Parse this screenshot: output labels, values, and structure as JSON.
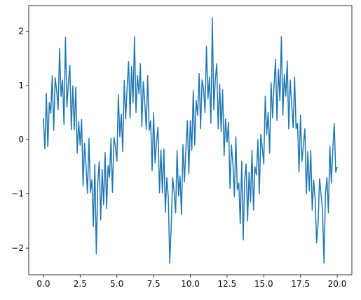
{
  "chart_data": {
    "type": "line",
    "color": "#1f77b4",
    "x": [
      0,
      0.1,
      0.2,
      0.3,
      0.4,
      0.5,
      0.6,
      0.7,
      0.8,
      0.9,
      1,
      1.1,
      1.2,
      1.3,
      1.4,
      1.5,
      1.6,
      1.7,
      1.8,
      1.9,
      2,
      2.1,
      2.2,
      2.3,
      2.4,
      2.5,
      2.6,
      2.7,
      2.8,
      2.9,
      3,
      3.1,
      3.2,
      3.3,
      3.4,
      3.5,
      3.6,
      3.7,
      3.8,
      3.9,
      4,
      4.1,
      4.2,
      4.3,
      4.4,
      4.5,
      4.6,
      4.7,
      4.8,
      4.9,
      5,
      5.1,
      5.2,
      5.3,
      5.4,
      5.5,
      5.6,
      5.7,
      5.8,
      5.9,
      6,
      6.1,
      6.2,
      6.3,
      6.4,
      6.5,
      6.6,
      6.7,
      6.8,
      6.9,
      7,
      7.1,
      7.2,
      7.3,
      7.4,
      7.5,
      7.6,
      7.7,
      7.8,
      7.9,
      8,
      8.1,
      8.2,
      8.3,
      8.4,
      8.5,
      8.6,
      8.7,
      8.8,
      8.9,
      9,
      9.1,
      9.2,
      9.3,
      9.4,
      9.5,
      9.6,
      9.7,
      9.8,
      9.9,
      10,
      10.1,
      10.2,
      10.3,
      10.4,
      10.5,
      10.6,
      10.7,
      10.8,
      10.9,
      11,
      11.1,
      11.2,
      11.3,
      11.4,
      11.5,
      11.6,
      11.7,
      11.8,
      11.9,
      12,
      12.1,
      12.2,
      12.3,
      12.4,
      12.5,
      12.6,
      12.7,
      12.8,
      12.9,
      13,
      13.1,
      13.2,
      13.3,
      13.4,
      13.5,
      13.6,
      13.7,
      13.8,
      13.9,
      14,
      14.1,
      14.2,
      14.3,
      14.4,
      14.5,
      14.6,
      14.7,
      14.8,
      14.9,
      15,
      15.1,
      15.2,
      15.3,
      15.4,
      15.5,
      15.6,
      15.7,
      15.8,
      15.9,
      16,
      16.1,
      16.2,
      16.3,
      16.4,
      16.5,
      16.6,
      16.7,
      16.8,
      16.9,
      17,
      17.1,
      17.2,
      17.3,
      17.4,
      17.5,
      17.6,
      17.7,
      17.8,
      17.9,
      18,
      18.1,
      18.2,
      18.3,
      18.4,
      18.5,
      18.6,
      18.7,
      18.8,
      18.9,
      19,
      19.1,
      19.2,
      19.3,
      19.4,
      19.5,
      19.6,
      19.7,
      19.8,
      19.9,
      20
    ],
    "values": [
      0.4,
      -0.17,
      0.85,
      -0.13,
      0.68,
      0.49,
      1.18,
      0.17,
      1.14,
      0.9,
      0.55,
      1.68,
      0.8,
      1.1,
      0.28,
      1.88,
      0.6,
      1.04,
      1.37,
      0.18,
      0.99,
      0.18,
      0.97,
      -0.25,
      0.33,
      -0.1,
      0.37,
      -0.85,
      -0.07,
      -0.48,
      -0.99,
      0.02,
      -0.97,
      -0.74,
      -1.6,
      -0.45,
      -2.1,
      -0.8,
      -0.4,
      -1.48,
      -0.55,
      -1.2,
      -0.24,
      -1.27,
      -0.48,
      -0.69,
      0.02,
      -0.97,
      0.05,
      -0.13,
      -0.4,
      0.83,
      0.05,
      0.47,
      -0.22,
      1.09,
      0.38,
      0.97,
      1.44,
      0.4,
      1.35,
      0.68,
      1.9,
      0.5,
      1.18,
      0.85,
      1.4,
      0.24,
      1.07,
      0.68,
      0.19,
      1.18,
      0.17,
      0.35,
      -0.57,
      0.5,
      -0.43,
      -0.05,
      0.23,
      -0.98,
      -0.19,
      -0.98,
      -0.17,
      -1.34,
      -0.7,
      -1.05,
      -2.27,
      -1.6,
      -0.7,
      -0.98,
      -1.35,
      -0.2,
      -1.04,
      -0.67,
      -1.38,
      -0.09,
      -0.78,
      -0.17,
      0.35,
      -0.63,
      0.35,
      -0.2,
      0.9,
      -0.1,
      0.72,
      0.45,
      1.22,
      0.2,
      1.1,
      0.95,
      0.5,
      1.72,
      0.75,
      1.15,
      0.3,
      2.25,
      0.55,
      1.1,
      1.4,
      0.2,
      1.02,
      0.15,
      0.92,
      -0.3,
      0.38,
      -0.05,
      0.32,
      -0.9,
      -0.1,
      -0.45,
      -1.05,
      0.05,
      -0.92,
      -0.8,
      -1.55,
      -0.4,
      -1.85,
      -0.75,
      -0.45,
      -1.5,
      -0.6,
      -1.15,
      -0.2,
      -1.3,
      -0.5,
      -0.65,
      0.0,
      -1.0,
      0.1,
      -0.15,
      -0.45,
      0.8,
      0.1,
      0.5,
      -0.25,
      1.05,
      0.4,
      1.0,
      1.48,
      0.35,
      1.3,
      0.72,
      1.9,
      0.45,
      1.2,
      0.8,
      1.45,
      0.2,
      1.1,
      0.65,
      0.22,
      1.15,
      0.2,
      0.3,
      -0.6,
      0.45,
      -0.4,
      -0.1,
      0.2,
      -1.0,
      -0.22,
      -0.95,
      -0.2,
      -1.3,
      -0.75,
      -1.1,
      -1.9,
      -1.55,
      -0.72,
      -1.0,
      -1.3,
      -2.27,
      -1.0,
      -0.7,
      -1.35,
      -0.12,
      -0.8,
      -0.2,
      0.3,
      -0.6,
      -0.5
    ],
    "xlim": [
      -1,
      21
    ],
    "ylim": [
      -2.49,
      2.47
    ],
    "xticks": [
      {
        "value": 0,
        "label": "0.0"
      },
      {
        "value": 2.5,
        "label": "2.5"
      },
      {
        "value": 5,
        "label": "5.0"
      },
      {
        "value": 7.5,
        "label": "7.5"
      },
      {
        "value": 10,
        "label": "10.0"
      },
      {
        "value": 12.5,
        "label": "12.5"
      },
      {
        "value": 15,
        "label": "15.0"
      },
      {
        "value": 17.5,
        "label": "17.5"
      },
      {
        "value": 20,
        "label": "20.0"
      }
    ],
    "yticks": [
      {
        "value": -2,
        "label": "−2"
      },
      {
        "value": -1,
        "label": "−1"
      },
      0,
      1,
      2
    ]
  }
}
